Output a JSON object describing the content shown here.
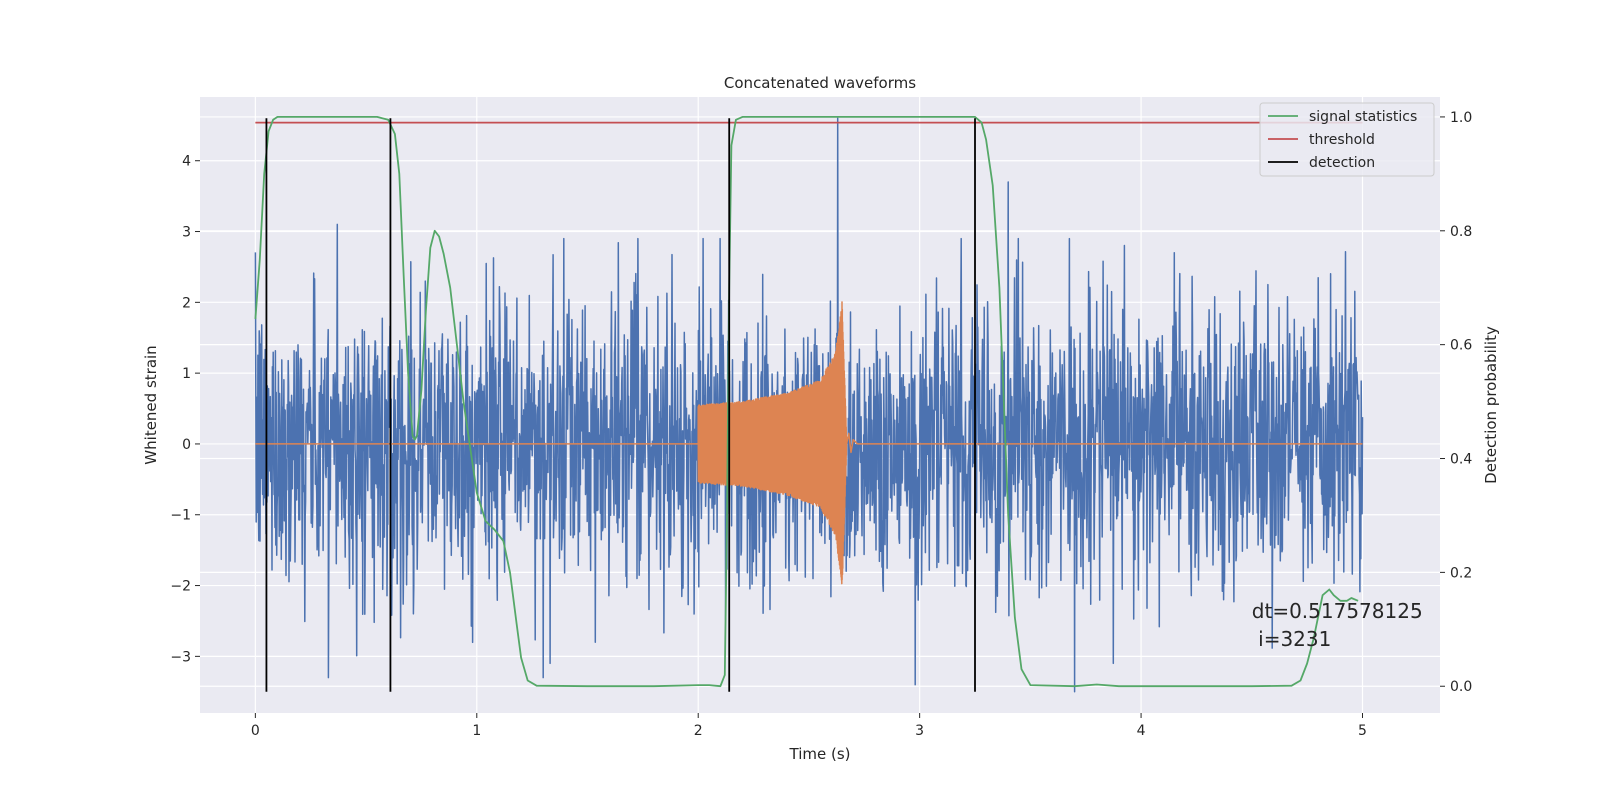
{
  "chart_data": {
    "type": "line",
    "title": "Concatenated waveforms",
    "xlabel": "Time (s)",
    "ylabel": "Whitened strain",
    "ylabel_right": "Detection probability",
    "xlim": [
      -0.25,
      5.35
    ],
    "ylim": [
      -3.8,
      4.9
    ],
    "ylim_right": [
      -0.047,
      1.035
    ],
    "x_ticks": [
      0,
      1,
      2,
      3,
      4,
      5
    ],
    "y_ticks": [
      -3,
      -2,
      -1,
      0,
      1,
      2,
      3,
      4
    ],
    "y_ticks_right": [
      0.0,
      0.2,
      0.4,
      0.6,
      0.8,
      1.0
    ],
    "x_tick_labels": [
      "0",
      "1",
      "2",
      "3",
      "4",
      "5"
    ],
    "y_tick_labels": [
      "−3",
      "−2",
      "−1",
      "0",
      "1",
      "2",
      "3",
      "4"
    ],
    "y_tick_labels_right": [
      "0.0",
      "0.2",
      "0.4",
      "0.6",
      "0.8",
      "1.0"
    ],
    "grid": true,
    "legend_position": "top-right",
    "colors": {
      "strain": "#4c72b0",
      "template": "#dd8452",
      "signal_statistics": "#55a868",
      "threshold": "#c44e52",
      "detection": "#000000",
      "background": "#eaeaf2",
      "grid": "#ffffff"
    },
    "series": [
      {
        "name": "strain",
        "axis": "left",
        "x_range": [
          0,
          5
        ],
        "typical_amplitude": 1.3,
        "peak_points": [
          [
            0.33,
            -3.3
          ],
          [
            0.37,
            3.1
          ],
          [
            1.3,
            -3.3
          ],
          [
            2.63,
            4.6
          ],
          [
            2.98,
            -3.4
          ],
          [
            3.4,
            3.7
          ],
          [
            3.7,
            -3.5
          ],
          [
            4.15,
            2.7
          ]
        ]
      },
      {
        "name": "template",
        "axis": "left",
        "x_range": [
          2.0,
          2.67
        ],
        "envelope": [
          [
            2.0,
            0.55
          ],
          [
            2.2,
            0.6
          ],
          [
            2.4,
            0.72
          ],
          [
            2.55,
            0.9
          ],
          [
            2.62,
            1.3
          ],
          [
            2.65,
            2.05
          ],
          [
            2.67,
            0.1
          ]
        ]
      },
      {
        "name": "signal statistics",
        "axis": "right",
        "points": [
          [
            0.0,
            0.645
          ],
          [
            0.02,
            0.75
          ],
          [
            0.04,
            0.9
          ],
          [
            0.06,
            0.975
          ],
          [
            0.08,
            0.995
          ],
          [
            0.1,
            1.0
          ],
          [
            0.2,
            1.0
          ],
          [
            0.4,
            1.0
          ],
          [
            0.55,
            1.0
          ],
          [
            0.6,
            0.995
          ],
          [
            0.63,
            0.97
          ],
          [
            0.65,
            0.9
          ],
          [
            0.67,
            0.72
          ],
          [
            0.69,
            0.55
          ],
          [
            0.71,
            0.44
          ],
          [
            0.72,
            0.433
          ],
          [
            0.73,
            0.44
          ],
          [
            0.75,
            0.52
          ],
          [
            0.77,
            0.66
          ],
          [
            0.79,
            0.77
          ],
          [
            0.81,
            0.8
          ],
          [
            0.83,
            0.79
          ],
          [
            0.85,
            0.76
          ],
          [
            0.88,
            0.7
          ],
          [
            0.91,
            0.6
          ],
          [
            0.94,
            0.5
          ],
          [
            0.97,
            0.42
          ],
          [
            1.0,
            0.34
          ],
          [
            1.04,
            0.29
          ],
          [
            1.08,
            0.275
          ],
          [
            1.12,
            0.255
          ],
          [
            1.15,
            0.2
          ],
          [
            1.18,
            0.11
          ],
          [
            1.2,
            0.05
          ],
          [
            1.23,
            0.01
          ],
          [
            1.27,
            0.001
          ],
          [
            1.5,
            0.0
          ],
          [
            1.8,
            0.0
          ],
          [
            2.0,
            0.002
          ],
          [
            2.05,
            0.002
          ],
          [
            2.1,
            0.0
          ],
          [
            2.12,
            0.02
          ],
          [
            2.13,
            0.3
          ],
          [
            2.14,
            0.7
          ],
          [
            2.15,
            0.95
          ],
          [
            2.17,
            0.995
          ],
          [
            2.2,
            1.0
          ],
          [
            2.5,
            1.0
          ],
          [
            3.0,
            1.0
          ],
          [
            3.25,
            1.0
          ],
          [
            3.28,
            0.99
          ],
          [
            3.3,
            0.96
          ],
          [
            3.33,
            0.88
          ],
          [
            3.36,
            0.7
          ],
          [
            3.38,
            0.5
          ],
          [
            3.4,
            0.3
          ],
          [
            3.43,
            0.12
          ],
          [
            3.46,
            0.03
          ],
          [
            3.5,
            0.002
          ],
          [
            3.7,
            0.0
          ],
          [
            3.8,
            0.003
          ],
          [
            3.9,
            0.0
          ],
          [
            4.5,
            0.0
          ],
          [
            4.68,
            0.001
          ],
          [
            4.72,
            0.01
          ],
          [
            4.75,
            0.04
          ],
          [
            4.78,
            0.085
          ],
          [
            4.82,
            0.16
          ],
          [
            4.85,
            0.17
          ],
          [
            4.87,
            0.16
          ],
          [
            4.9,
            0.15
          ],
          [
            4.93,
            0.15
          ],
          [
            4.95,
            0.155
          ],
          [
            4.98,
            0.15
          ]
        ]
      },
      {
        "name": "threshold",
        "axis": "right",
        "x": [
          0,
          5
        ],
        "values": [
          0.99,
          0.99
        ]
      },
      {
        "name": "detection",
        "axis": "left",
        "type": "vlines",
        "x": [
          0.05,
          0.61,
          2.14,
          3.25
        ],
        "y_range": [
          -3.5,
          4.6
        ]
      }
    ],
    "legend": [
      "signal statistics",
      "threshold",
      "detection"
    ],
    "annotation": {
      "line1": "dt=0.517578125",
      "line2": " i=3231",
      "x": 4.5,
      "y_right": 0.12
    }
  }
}
